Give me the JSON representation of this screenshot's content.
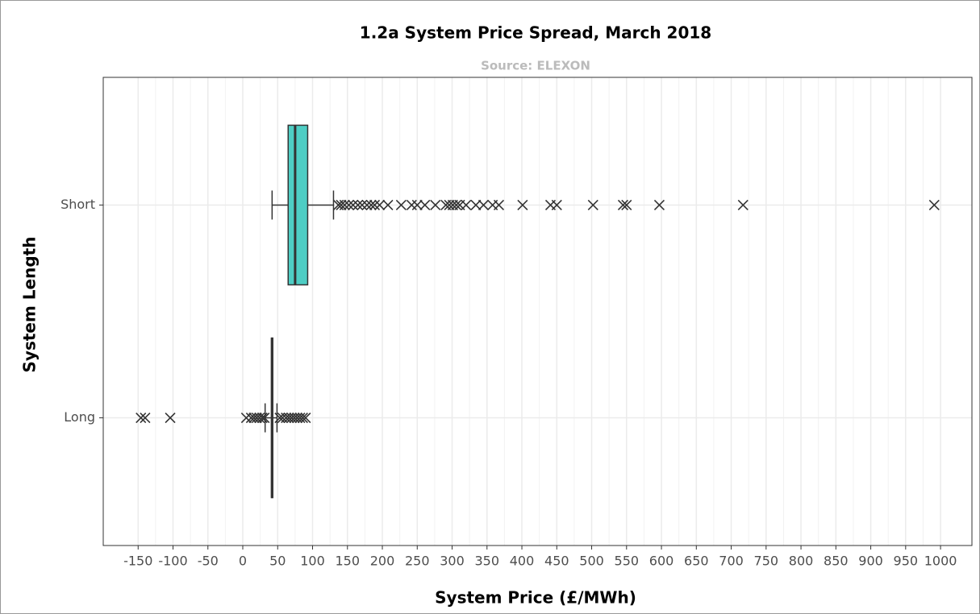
{
  "chart_data": {
    "type": "boxplot",
    "orientation": "horizontal",
    "title": "1.2a System Price Spread, March 2018",
    "subtitle": "Source: ELEXON",
    "x_label": "System Price (£/MWh)",
    "y_label": "System Length",
    "categories": [
      "Short",
      "Long"
    ],
    "color": "#4ecdc4",
    "boxes": [
      {
        "whisker_low": 42,
        "q1": 65,
        "median": 75,
        "q3": 93,
        "whisker_high": 130,
        "outliers": [
          137,
          141,
          146,
          152,
          158,
          165,
          171,
          178,
          184,
          189,
          196,
          208,
          227,
          242,
          250,
          261,
          276,
          291,
          296,
          301,
          306,
          311,
          320,
          334,
          345,
          358,
          367,
          401,
          441,
          450,
          502,
          545,
          550,
          597,
          717,
          991
        ]
      },
      {
        "whisker_low": 32,
        "q1": 41,
        "median": 42,
        "q3": 43,
        "whisker_high": 49,
        "outliers": [
          -146,
          -140,
          -104,
          5,
          12,
          16,
          20,
          24,
          28,
          31,
          53,
          57,
          62,
          66,
          70,
          74,
          78,
          82,
          86,
          90
        ]
      }
    ],
    "xlim": [
      -200,
      1045
    ],
    "xticks": [
      -150,
      -100,
      -50,
      0,
      50,
      100,
      150,
      200,
      250,
      300,
      350,
      400,
      450,
      500,
      550,
      600,
      650,
      700,
      750,
      800,
      850,
      900,
      950,
      1000
    ],
    "grid": true
  }
}
